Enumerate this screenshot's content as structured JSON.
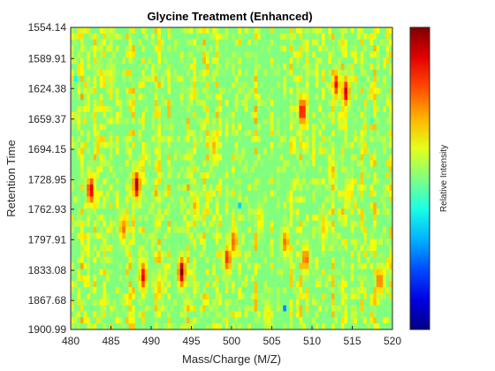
{
  "chart_data": {
    "type": "heatmap",
    "title": "Glycine Treatment (Enhanced)",
    "xlabel": "Mass/Charge (M/Z)",
    "ylabel": "Retention Time",
    "colorbar_label": "Relative Intensity",
    "colormap": "jet",
    "x_range": [
      480,
      520
    ],
    "y_range": [
      1554.14,
      1900.99
    ],
    "x_ticks": [
      480,
      485,
      490,
      495,
      500,
      505,
      510,
      515,
      520
    ],
    "y_ticks": [
      "1554.14",
      "1589.91",
      "1624.38",
      "1659.37",
      "1694.15",
      "1728.95",
      "1762.93",
      "1797.91",
      "1833.08",
      "1867.68",
      "1900.99"
    ],
    "value_range": [
      0,
      1
    ],
    "background_level": 0.5,
    "hotspots": [
      {
        "mz": 482.5,
        "rt": 1741,
        "intensity": 0.93
      },
      {
        "mz": 488.2,
        "rt": 1735,
        "intensity": 0.97
      },
      {
        "mz": 493.8,
        "rt": 1835,
        "intensity": 0.99
      },
      {
        "mz": 489.0,
        "rt": 1840,
        "intensity": 0.9
      },
      {
        "mz": 486.5,
        "rt": 1785,
        "intensity": 0.78
      },
      {
        "mz": 508.8,
        "rt": 1650,
        "intensity": 0.92
      },
      {
        "mz": 514.2,
        "rt": 1628,
        "intensity": 0.93
      },
      {
        "mz": 513.0,
        "rt": 1620,
        "intensity": 0.85
      },
      {
        "mz": 499.5,
        "rt": 1820,
        "intensity": 0.85
      },
      {
        "mz": 500.3,
        "rt": 1800,
        "intensity": 0.8
      },
      {
        "mz": 506.7,
        "rt": 1800,
        "intensity": 0.78
      },
      {
        "mz": 509.2,
        "rt": 1820,
        "intensity": 0.8
      },
      {
        "mz": 518.4,
        "rt": 1845,
        "intensity": 0.8
      },
      {
        "mz": 497.8,
        "rt": 1690,
        "intensity": 0.7
      },
      {
        "mz": 495.5,
        "rt": 1760,
        "intensity": 0.7
      },
      {
        "mz": 511.5,
        "rt": 1785,
        "intensity": 0.68
      },
      {
        "mz": 503.5,
        "rt": 1775,
        "intensity": 0.66
      },
      {
        "mz": 504.5,
        "rt": 1885,
        "intensity": 0.66
      },
      {
        "mz": 514.5,
        "rt": 1745,
        "intensity": 0.66
      },
      {
        "mz": 512.5,
        "rt": 1720,
        "intensity": 0.68
      },
      {
        "mz": 485.0,
        "rt": 1610,
        "intensity": 0.62
      },
      {
        "mz": 491.0,
        "rt": 1850,
        "intensity": 0.66
      }
    ],
    "cold_spots": [
      {
        "mz": 480.5,
        "rt": 1615,
        "intensity": 0.22
      },
      {
        "mz": 504.8,
        "rt": 1590,
        "intensity": 0.28
      },
      {
        "mz": 506.6,
        "rt": 1875,
        "intensity": 0.2
      },
      {
        "mz": 501.0,
        "rt": 1760,
        "intensity": 0.3
      },
      {
        "mz": 517.5,
        "rt": 1660,
        "intensity": 0.3
      }
    ]
  }
}
